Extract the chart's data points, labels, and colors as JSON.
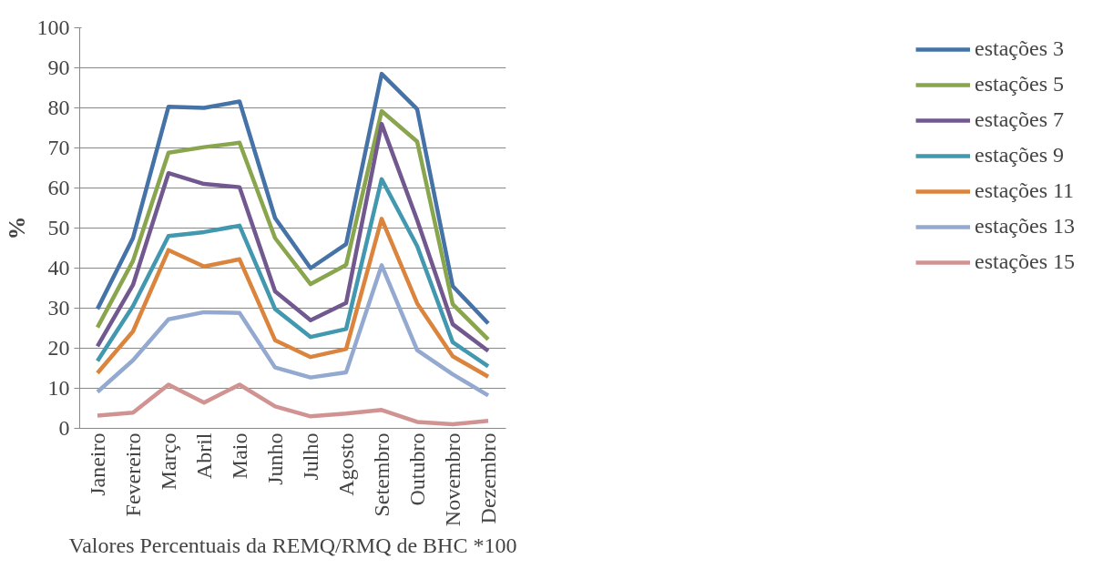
{
  "chart_data": {
    "type": "line",
    "xlabel": "Valores Percentuais da REMQ/RMQ de BHC *100",
    "ylabel": "%",
    "categories": [
      "Janeiro",
      "Fevereiro",
      "Março",
      "Abril",
      "Maio",
      "Junho",
      "Julho",
      "Agosto",
      "Setembro",
      "Outubro",
      "Novembro",
      "Dezembro"
    ],
    "ylim": [
      0,
      100
    ],
    "yticks": [
      0,
      10,
      20,
      30,
      40,
      50,
      60,
      70,
      80,
      90,
      100
    ],
    "grid": "y",
    "legend": "right",
    "marker": "none",
    "line_style": "solid",
    "series": [
      {
        "name": "estações 3",
        "color": "#4573a7",
        "values": [
          29.8,
          47.5,
          80.3,
          80,
          81.6,
          52.5,
          40,
          46,
          88.5,
          79.7,
          35.5,
          26.2
        ]
      },
      {
        "name": "estações 5",
        "color": "#89a54e",
        "values": [
          25.2,
          41.8,
          68.8,
          70.2,
          71.3,
          47.5,
          36,
          40.8,
          79.2,
          71.6,
          31,
          22.2
        ]
      },
      {
        "name": "estações 7",
        "color": "#71588f",
        "values": [
          20.5,
          35.8,
          63.7,
          61,
          60.2,
          34.2,
          27,
          31.3,
          76,
          52,
          26,
          19.3
        ]
      },
      {
        "name": "estações 9",
        "color": "#4198af",
        "values": [
          16.8,
          30.5,
          48,
          49,
          50.6,
          29.8,
          22.8,
          24.8,
          62.2,
          45.5,
          21.5,
          15.5
        ]
      },
      {
        "name": "estações 11",
        "color": "#db843d",
        "values": [
          13.8,
          24.2,
          44.5,
          40.4,
          42.2,
          22,
          17.8,
          19.8,
          52.3,
          31.2,
          18,
          12.9
        ]
      },
      {
        "name": "estações 13",
        "color": "#93a9cf",
        "values": [
          9.1,
          17,
          27.2,
          29,
          28.8,
          15.2,
          12.7,
          14,
          40.7,
          19.5,
          13.5,
          8.2
        ]
      },
      {
        "name": "estações 15",
        "color": "#d19392",
        "values": [
          3.2,
          3.9,
          10.9,
          6.4,
          10.9,
          5.5,
          3,
          3.7,
          4.6,
          1.6,
          1,
          1.9
        ]
      }
    ]
  }
}
